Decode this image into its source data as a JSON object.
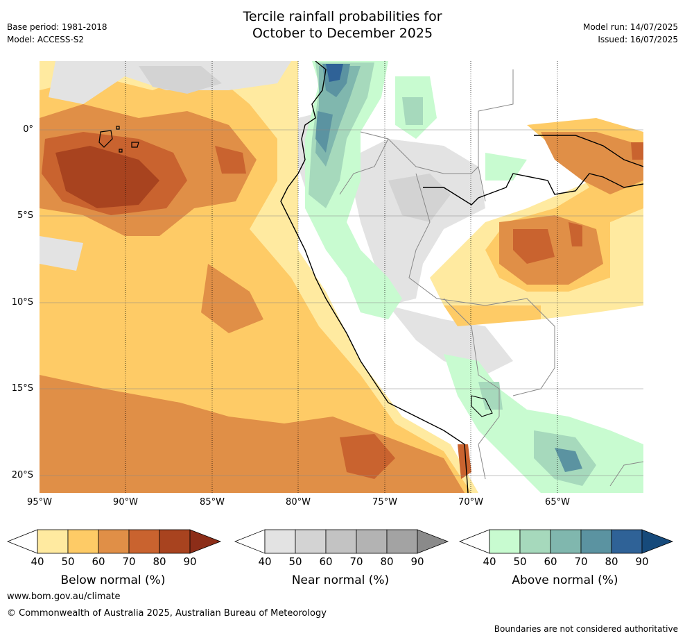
{
  "header": {
    "title_line1": "Tercile rainfall probabilities for",
    "title_line2": "October to December 2025",
    "base_period": "Base period: 1981-2018",
    "model": "Model: ACCESS-S2",
    "model_run": "Model run: 14/07/2025",
    "issued": "Issued: 16/07/2025"
  },
  "axes": {
    "lat_ticks": [
      "0°",
      "5°S",
      "10°S",
      "15°S",
      "20°S"
    ],
    "lon_ticks": [
      "95°W",
      "90°W",
      "85°W",
      "80°W",
      "75°W",
      "70°W",
      "65°W"
    ]
  },
  "colors": {
    "below": [
      "#ffffff",
      "#ffeaa0",
      "#fecb66",
      "#e08f47",
      "#c9632f",
      "#a8431f",
      "#8c2d18"
    ],
    "near": [
      "#ffffff",
      "#e3e3e3",
      "#d3d3d3",
      "#c3c3c3",
      "#b3b3b3",
      "#a3a3a3",
      "#8a8a8a"
    ],
    "above": [
      "#ffffff",
      "#c8fbd0",
      "#a6d9bc",
      "#80b7ae",
      "#5b93a1",
      "#2f6297",
      "#164a7b"
    ],
    "ocean_grid": "#888888",
    "coast": "#000000",
    "border": "#888888"
  },
  "colorbars": [
    {
      "title": "Below normal (%)",
      "labels": [
        "40",
        "50",
        "60",
        "70",
        "80",
        "90"
      ]
    },
    {
      "title": "Near normal (%)",
      "labels": [
        "40",
        "50",
        "60",
        "70",
        "80",
        "90"
      ]
    },
    {
      "title": "Above normal (%)",
      "labels": [
        "40",
        "50",
        "60",
        "70",
        "80",
        "90"
      ]
    }
  ],
  "footer": {
    "website": "www.bom.gov.au/climate",
    "copyright": "© Commonwealth of Australia 2025, Australian Bureau of Meteorology",
    "disclaimer": "Boundaries are not considered authoritative"
  }
}
